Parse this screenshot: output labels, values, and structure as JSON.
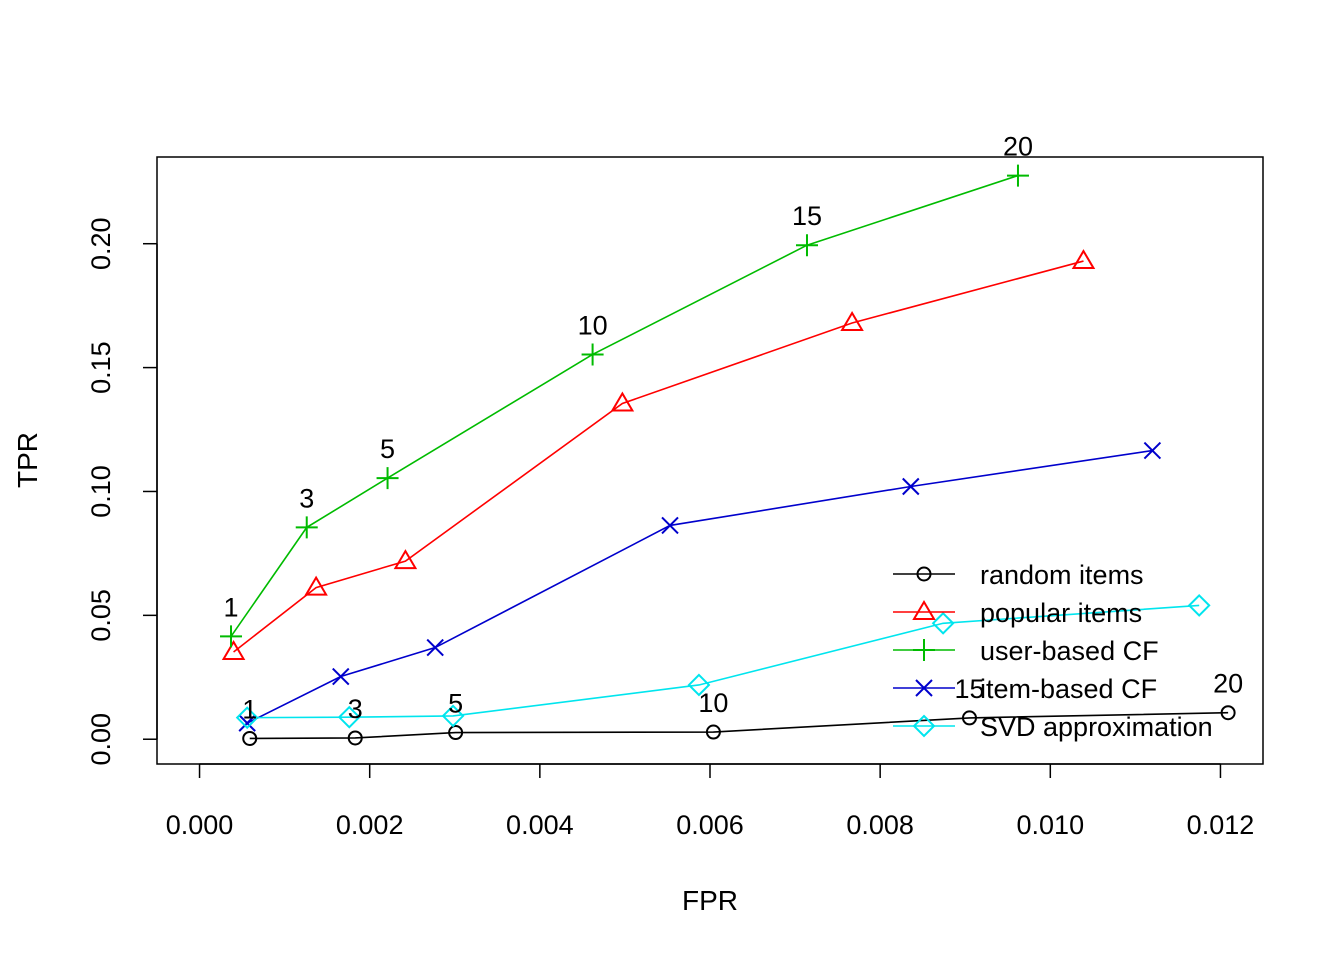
{
  "chart_data": {
    "type": "line",
    "title": "",
    "xlabel": "FPR",
    "ylabel": "TPR",
    "xlim": [
      -0.0005,
      0.0125
    ],
    "ylim": [
      -0.01,
      0.235
    ],
    "x_ticks": [
      0.0,
      0.002,
      0.004,
      0.006,
      0.008,
      0.01,
      0.012
    ],
    "x_tick_labels": [
      "0.000",
      "0.002",
      "0.004",
      "0.006",
      "0.008",
      "0.010",
      "0.012"
    ],
    "y_ticks": [
      0.0,
      0.05,
      0.1,
      0.15,
      0.2
    ],
    "y_tick_labels": [
      "0.00",
      "0.05",
      "0.10",
      "0.15",
      "0.20"
    ],
    "grid": false,
    "legend_position": "bottom-right",
    "series": [
      {
        "name": "random items",
        "color": "#000000",
        "marker": "circle",
        "x": [
          0.00059,
          0.00183,
          0.00301,
          0.00604,
          0.00905,
          0.01209
        ],
        "y": [
          0.0003,
          0.0005,
          0.0027,
          0.0029,
          0.0086,
          0.0107
        ],
        "point_labels": [
          "1",
          "3",
          "5",
          "10",
          "15",
          "20"
        ]
      },
      {
        "name": "popular items",
        "color": "#ff0000",
        "marker": "triangle",
        "x": [
          0.0004,
          0.00137,
          0.00242,
          0.00497,
          0.00767,
          0.01039
        ],
        "y": [
          0.0352,
          0.0612,
          0.0719,
          0.1355,
          0.168,
          0.193
        ]
      },
      {
        "name": "user-based CF",
        "color": "#00bb00",
        "marker": "plus",
        "x": [
          0.00037,
          0.00126,
          0.00221,
          0.00462,
          0.00714,
          0.00962
        ],
        "y": [
          0.0415,
          0.0855,
          0.1054,
          0.1553,
          0.1994,
          0.2275
        ],
        "point_labels": [
          "1",
          "3",
          "5",
          "10",
          "15",
          "20"
        ]
      },
      {
        "name": "item-based CF",
        "color": "#0000cc",
        "marker": "cross",
        "x": [
          0.00056,
          0.00166,
          0.00277,
          0.00553,
          0.00836,
          0.0112
        ],
        "y": [
          0.0065,
          0.0253,
          0.037,
          0.0863,
          0.102,
          0.1165
        ]
      },
      {
        "name": "SVD approximation",
        "color": "#00e5ee",
        "marker": "diamond",
        "x": [
          0.00056,
          0.00176,
          0.00298,
          0.00587,
          0.00874,
          0.01175
        ],
        "y": [
          0.0087,
          0.0089,
          0.0094,
          0.0219,
          0.0468,
          0.054
        ]
      }
    ]
  }
}
